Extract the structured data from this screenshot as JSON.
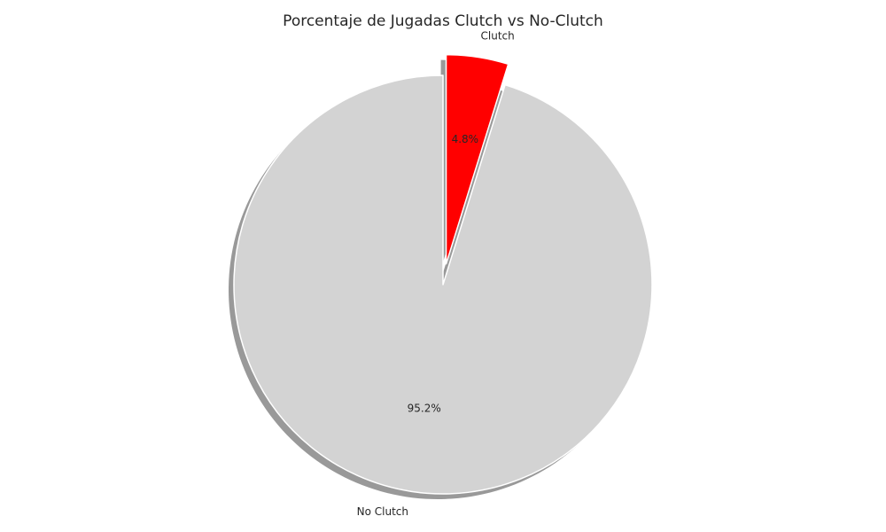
{
  "chart_data": {
    "type": "pie",
    "title": "Porcentaje de Jugadas Clutch vs No-Clutch",
    "slices": [
      {
        "label": "Clutch",
        "value": 4.8,
        "pct_label": "4.8%",
        "color": "#ff0000",
        "exploded": true
      },
      {
        "label": "No Clutch",
        "value": 95.2,
        "pct_label": "95.2%",
        "color": "#d3d3d3",
        "exploded": false
      }
    ],
    "start_angle": "top (12 o'clock)",
    "direction": "clockwise",
    "shadow": true,
    "edge_color": "#ffffff"
  }
}
